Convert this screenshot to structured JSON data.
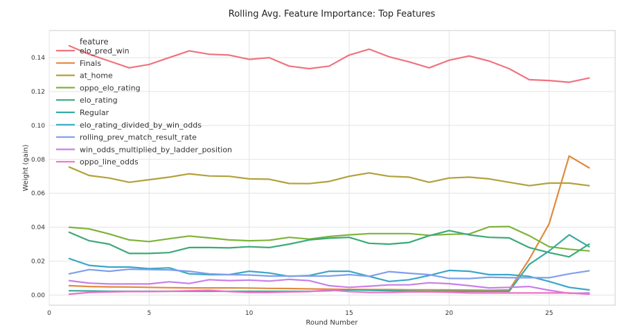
{
  "chart_data": {
    "type": "line",
    "title": "Rolling Avg. Feature Importance: Top Features",
    "xlabel": "Round Number",
    "ylabel": "Weight (gain)",
    "xlim": [
      0,
      28.3
    ],
    "ylim": [
      -0.006,
      0.156
    ],
    "xticks": [
      0,
      5,
      10,
      15,
      20,
      25
    ],
    "yticks": [
      0.0,
      0.02,
      0.04,
      0.06,
      0.08,
      0.1,
      0.12,
      0.14
    ],
    "ytick_labels": [
      "0.00",
      "0.02",
      "0.04",
      "0.06",
      "0.08",
      "0.10",
      "0.12",
      "0.14"
    ],
    "grid": true,
    "legend_placement": "top-left",
    "legend_title": "feature",
    "x": [
      1,
      2,
      3,
      4,
      5,
      6,
      7,
      8,
      9,
      10,
      11,
      12,
      13,
      14,
      15,
      16,
      17,
      18,
      19,
      20,
      21,
      22,
      23,
      24,
      25,
      26,
      27
    ],
    "series": [
      {
        "name": "elo_pred_win",
        "color": "#f0737f",
        "values": [
          0.147,
          0.142,
          0.138,
          0.134,
          0.136,
          0.14,
          0.144,
          0.142,
          0.1415,
          0.139,
          0.14,
          0.135,
          0.1335,
          0.135,
          0.1415,
          0.145,
          0.1405,
          0.1375,
          0.134,
          0.1385,
          0.141,
          0.138,
          0.1335,
          0.127,
          0.1265,
          0.1255,
          0.128
        ]
      },
      {
        "name": "Finals",
        "color": "#e08a3c",
        "values": [
          0.0055,
          0.005,
          0.0048,
          0.0047,
          0.0045,
          0.0043,
          0.0042,
          0.0042,
          0.0042,
          0.0041,
          0.0039,
          0.0038,
          0.0036,
          0.0035,
          0.0033,
          0.0032,
          0.0032,
          0.0031,
          0.0031,
          0.003,
          0.0029,
          0.0028,
          0.003,
          0.021,
          0.042,
          0.082,
          0.075
        ]
      },
      {
        "name": "at_home",
        "color": "#b3a13a",
        "values": [
          0.0755,
          0.0705,
          0.069,
          0.0665,
          0.068,
          0.0695,
          0.0715,
          0.0702,
          0.07,
          0.0685,
          0.0683,
          0.0658,
          0.0657,
          0.067,
          0.07,
          0.072,
          0.07,
          0.0695,
          0.0665,
          0.069,
          0.0695,
          0.0685,
          0.0665,
          0.0645,
          0.066,
          0.066,
          0.0645
        ]
      },
      {
        "name": "oppo_elo_rating",
        "color": "#7fb33a",
        "values": [
          0.04,
          0.039,
          0.036,
          0.0325,
          0.0315,
          0.0332,
          0.0348,
          0.0337,
          0.0325,
          0.032,
          0.0323,
          0.034,
          0.033,
          0.0345,
          0.0355,
          0.0362,
          0.0362,
          0.0362,
          0.0352,
          0.0358,
          0.036,
          0.0402,
          0.0404,
          0.035,
          0.0285,
          0.027,
          0.026
        ]
      },
      {
        "name": "elo_rating",
        "color": "#3aaa78",
        "values": [
          0.037,
          0.032,
          0.03,
          0.0245,
          0.0245,
          0.025,
          0.028,
          0.028,
          0.0278,
          0.0285,
          0.028,
          0.03,
          0.0325,
          0.0335,
          0.034,
          0.0305,
          0.03,
          0.031,
          0.035,
          0.038,
          0.0355,
          0.034,
          0.0337,
          0.028,
          0.025,
          0.0225,
          0.03
        ]
      },
      {
        "name": "Regular",
        "color": "#38ab9f",
        "values": [
          0.0025,
          0.0024,
          0.0022,
          0.0022,
          0.0022,
          0.0022,
          0.0022,
          0.0022,
          0.0022,
          0.0022,
          0.0022,
          0.0022,
          0.0022,
          0.0025,
          0.003,
          0.0028,
          0.0025,
          0.0023,
          0.0022,
          0.0022,
          0.0022,
          0.0022,
          0.0022,
          0.018,
          0.026,
          0.0355,
          0.0285
        ]
      },
      {
        "name": "elo_rating_divided_by_win_odds",
        "color": "#3aa6c8",
        "values": [
          0.0215,
          0.0175,
          0.0165,
          0.0165,
          0.0155,
          0.016,
          0.0125,
          0.012,
          0.012,
          0.014,
          0.013,
          0.011,
          0.0115,
          0.014,
          0.014,
          0.011,
          0.008,
          0.009,
          0.0115,
          0.0145,
          0.014,
          0.012,
          0.012,
          0.011,
          0.008,
          0.0045,
          0.003
        ]
      },
      {
        "name": "rolling_prev_match_result_rate",
        "color": "#7f9fee",
        "values": [
          0.0125,
          0.015,
          0.014,
          0.0152,
          0.015,
          0.0148,
          0.014,
          0.0125,
          0.012,
          0.0118,
          0.0112,
          0.0112,
          0.0112,
          0.0112,
          0.012,
          0.011,
          0.0138,
          0.0128,
          0.012,
          0.0098,
          0.0097,
          0.0105,
          0.0102,
          0.0102,
          0.0102,
          0.0125,
          0.0143
        ]
      },
      {
        "name": "win_odds_multiplied_by_ladder_position",
        "color": "#c97fe8",
        "values": [
          0.0085,
          0.007,
          0.0065,
          0.0065,
          0.0065,
          0.0078,
          0.0068,
          0.009,
          0.0085,
          0.0088,
          0.0082,
          0.0092,
          0.0085,
          0.0055,
          0.0045,
          0.0052,
          0.006,
          0.006,
          0.0072,
          0.0067,
          0.0055,
          0.0042,
          0.0045,
          0.005,
          0.0028,
          0.001,
          0.0012
        ]
      },
      {
        "name": "oppo_line_odds",
        "color": "#ee72c6",
        "values": [
          0.0005,
          0.0015,
          0.0018,
          0.002,
          0.002,
          0.0022,
          0.0025,
          0.0028,
          0.002,
          0.0015,
          0.0015,
          0.0018,
          0.002,
          0.003,
          0.002,
          0.0015,
          0.0015,
          0.0018,
          0.0018,
          0.0016,
          0.0012,
          0.0012,
          0.0012,
          0.0012,
          0.0012,
          0.0012,
          0.0005
        ]
      }
    ]
  }
}
